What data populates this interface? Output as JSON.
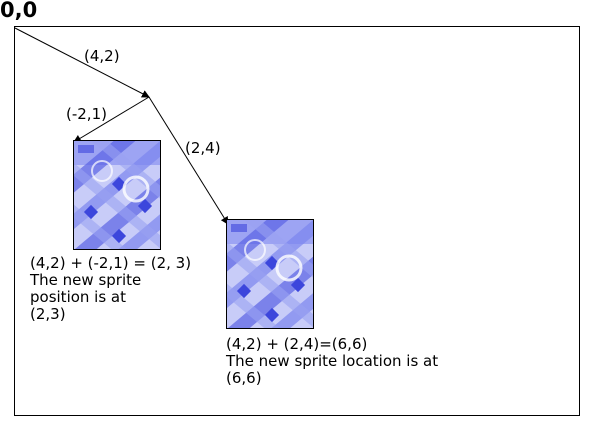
{
  "origin_label": "0,0",
  "vectors": {
    "first": "(4,2)",
    "left": "(-2,1)",
    "right": "(2,4)"
  },
  "sprite_left": {
    "image": "sprite-tile-image",
    "caption_lines": [
      "(4,2) + (-2,1) = (2, 3)",
      "The new sprite",
      "position is at",
      "(2,3)"
    ]
  },
  "sprite_right": {
    "image": "sprite-tile-image",
    "caption_lines": [
      "(4,2) + (2,4)=(6,6)",
      "The new sprite location is at",
      "(6,6)"
    ]
  },
  "colors": {
    "sprite_dark": "#3c46dc",
    "sprite_mid": "#7a84ee",
    "sprite_light": "#c8ccf8",
    "frame": "#000000"
  }
}
